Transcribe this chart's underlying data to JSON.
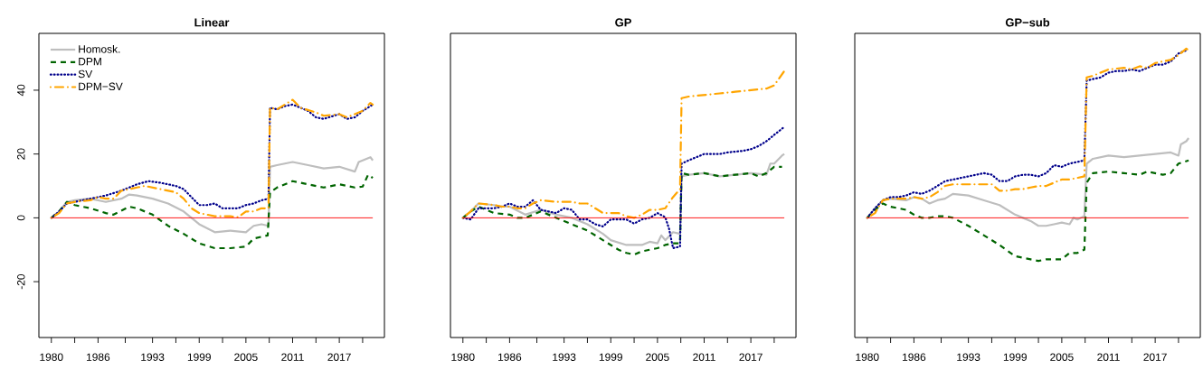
{
  "chart_data": [
    {
      "type": "line",
      "title": "Linear",
      "legend": "top left",
      "xlim": [
        1978.4,
        2022.8
      ],
      "ylim": [
        -37.5,
        57.8
      ],
      "yticks": [
        -20,
        0,
        20,
        40
      ],
      "xticks": [
        1980,
        {
          "value": 1983,
          "label": null
        },
        1986,
        {
          "value": 1989.5,
          "label": null
        },
        1993,
        {
          "value": 1996,
          "label": null
        },
        1999,
        {
          "value": 2002,
          "label": null
        },
        2005,
        {
          "value": 2008,
          "label": null
        },
        2011,
        {
          "value": 2014,
          "label": null
        },
        2017,
        {
          "value": 2020,
          "label": null
        }
      ],
      "ref_lines": [
        {
          "axis": "y",
          "value": 0,
          "color": "#ff0000"
        }
      ],
      "series": [
        {
          "name": "Homosk.",
          "color": "#bebebe",
          "line_style": "solid",
          "x": [
            1980,
            1981,
            1982,
            1983,
            1985,
            1987,
            1989,
            1990,
            1991,
            1993,
            1995,
            1997,
            1999,
            2001,
            2003,
            2005,
            2006,
            2007,
            2007.9,
            2008.1,
            2009,
            2011,
            2013,
            2015,
            2017,
            2019,
            2019.5,
            2020.5,
            2021,
            2021.3
          ],
          "values": [
            0,
            2,
            5,
            5.5,
            6,
            5,
            6,
            7.3,
            7,
            6,
            4.5,
            2,
            -2,
            -4.5,
            -4,
            -4.5,
            -2.5,
            -2,
            -2.5,
            16,
            16.5,
            17.5,
            16.5,
            15.5,
            16,
            14.5,
            17.5,
            18.5,
            19,
            18
          ]
        },
        {
          "name": "DPM",
          "color": "#006400",
          "line_style": "dashed",
          "x": [
            1980,
            1981,
            1982,
            1983,
            1985,
            1987,
            1988,
            1990,
            1991,
            1993,
            1995,
            1997,
            1999,
            2001,
            2003,
            2005,
            2006,
            2007.8,
            2008.1,
            2009,
            2011,
            2013,
            2015,
            2017,
            2019,
            2020,
            2020.7,
            2021.3
          ],
          "values": [
            0,
            2,
            5,
            4,
            3,
            1.5,
            1,
            3.5,
            3,
            1,
            -2.5,
            -5,
            -8,
            -9.5,
            -9.5,
            -9,
            -6.5,
            -5.5,
            8,
            9.5,
            11.5,
            10.5,
            9.5,
            10.5,
            9.5,
            9.8,
            13.5,
            12.5
          ]
        },
        {
          "name": "SV",
          "color": "#00008b",
          "line_style": "dotted",
          "x": [
            1980,
            1981,
            1982,
            1983,
            1985,
            1987,
            1989,
            1991,
            1992.5,
            1994,
            1996,
            1997,
            1998,
            1999,
            2000,
            2001,
            2002,
            2003,
            2004,
            2005,
            2006,
            2007,
            2007.9,
            2008.1,
            2009,
            2010,
            2011,
            2013,
            2014,
            2015,
            2017,
            2018,
            2019,
            2020,
            2021.3
          ],
          "values": [
            0,
            2,
            4.5,
            5,
            6,
            7,
            8.5,
            10.5,
            11.5,
            11,
            10,
            9,
            6.5,
            4,
            4,
            4.5,
            3,
            3,
            3,
            4,
            4.5,
            5.5,
            6,
            34.5,
            34,
            35,
            35.5,
            33.5,
            31.5,
            31,
            32.5,
            31,
            31.5,
            33.5,
            35.5
          ]
        },
        {
          "name": "DPM−SV",
          "color": "#ffa500",
          "line_style": "dashdot",
          "x": [
            1980,
            1981,
            1982,
            1983,
            1985,
            1986,
            1987,
            1988,
            1989,
            1991,
            1992,
            1994,
            1996,
            1997,
            1998,
            1999,
            2001,
            2002,
            2003,
            2004,
            2005,
            2006,
            2007,
            2007.9,
            2008.1,
            2009,
            2011,
            2012,
            2014,
            2015,
            2017,
            2018,
            2019,
            2020,
            2021,
            2021.3
          ],
          "values": [
            0,
            1.5,
            4.5,
            5,
            5.5,
            6.5,
            6,
            6,
            8.5,
            9.5,
            10,
            9,
            8,
            6,
            3,
            1.5,
            0.5,
            0.5,
            0.5,
            0.2,
            2,
            2,
            3,
            3,
            34.5,
            34,
            37,
            34.5,
            33,
            32,
            32.5,
            31.5,
            32.5,
            33.5,
            36,
            35.5
          ]
        }
      ]
    },
    {
      "type": "line",
      "title": "GP",
      "tick_labels": "x",
      "xlim": [
        1978.4,
        2022.8
      ],
      "ylim": [
        -37.5,
        57.8
      ],
      "xticks": [
        1980,
        {
          "value": 1983,
          "label": null
        },
        1986,
        {
          "value": 1989.5,
          "label": null
        },
        1993,
        {
          "value": 1996,
          "label": null
        },
        1999,
        {
          "value": 2002,
          "label": null
        },
        2005,
        {
          "value": 2008,
          "label": null
        },
        2011,
        {
          "value": 2014,
          "label": null
        },
        2017,
        {
          "value": 2020,
          "label": null
        }
      ],
      "ref_lines": [
        {
          "axis": "y",
          "value": 0,
          "color": "#ff0000"
        }
      ],
      "series": [
        {
          "color": "#bebebe",
          "line_style": "solid",
          "x": [
            1980,
            1981,
            1982,
            1984,
            1985,
            1986,
            1988,
            1990,
            1992,
            1994,
            1996,
            1998,
            1999,
            2001,
            2003,
            2004,
            2005,
            2005.5,
            2006,
            2007,
            2007.9,
            2008.1,
            2009,
            2011,
            2013,
            2015,
            2017,
            2019,
            2019.5,
            2020,
            2021,
            2021.3
          ],
          "values": [
            0,
            2,
            4.5,
            4,
            3.5,
            3.5,
            1,
            2.5,
            1,
            0,
            -2,
            -5,
            -7,
            -8.5,
            -8.5,
            -7.5,
            -8,
            -5.5,
            -7,
            -4.5,
            -5,
            13,
            13.5,
            14,
            13,
            13.5,
            14,
            13.5,
            17,
            17,
            19.5,
            20
          ]
        },
        {
          "color": "#006400",
          "line_style": "dashed",
          "x": [
            1980,
            1981,
            1982,
            1983,
            1984,
            1986,
            1987,
            1988,
            1989,
            1990,
            1992,
            1994,
            1996,
            1998,
            1999,
            2000,
            2001,
            2002,
            2003,
            2004,
            2005,
            2006,
            2007,
            2007.9,
            2008.1,
            2009,
            2011,
            2013,
            2015,
            2017,
            2018,
            2019,
            2020,
            2020.7,
            2021
          ],
          "values": [
            0,
            2,
            3.5,
            2.5,
            1.5,
            1,
            0,
            0,
            1,
            2,
            0,
            -2,
            -4,
            -7,
            -8.5,
            -10,
            -11,
            -11.5,
            -10.5,
            -10,
            -9.5,
            -8.5,
            -8,
            -8,
            14,
            13.5,
            14,
            13,
            13.5,
            14,
            13,
            14,
            16,
            16,
            16
          ]
        },
        {
          "color": "#00008b",
          "line_style": "dotted",
          "x": [
            1980,
            1981,
            1982,
            1983,
            1984,
            1985,
            1986,
            1987,
            1988,
            1989,
            1990,
            1991,
            1992,
            1993,
            1994,
            1995,
            1996,
            1997,
            1998,
            1999,
            2000,
            2001,
            2002,
            2003,
            2004,
            2005,
            2006,
            2006.5,
            2007,
            2007.9,
            2008.1,
            2009,
            2010,
            2011,
            2013,
            2014,
            2016,
            2017,
            2018,
            2019,
            2020,
            2021.3
          ],
          "values": [
            0,
            -0.5,
            3,
            3,
            3,
            3.5,
            4.5,
            3.5,
            3.5,
            5.5,
            2.5,
            2,
            1.5,
            3,
            2.5,
            -0.5,
            -0.5,
            -2,
            -2.7,
            -0.5,
            -0.5,
            -0.5,
            -1.8,
            -0.5,
            0,
            1.5,
            0.2,
            -3.5,
            -9.5,
            -9,
            17,
            18,
            19,
            20,
            20,
            20.5,
            21,
            21.5,
            22.5,
            24,
            26,
            28.5
          ]
        },
        {
          "color": "#ffa500",
          "line_style": "dashdot",
          "x": [
            1980,
            1981,
            1982,
            1984,
            1985,
            1986,
            1987,
            1988,
            1989,
            1990,
            1992,
            1993,
            1994,
            1995,
            1996,
            1997,
            1998,
            1999,
            2000,
            2001,
            2002,
            2003,
            2004,
            2005,
            2006,
            2007,
            2007.9,
            2008.1,
            2009,
            2011,
            2013,
            2015,
            2017,
            2019,
            2020,
            2021.3
          ],
          "values": [
            0,
            2,
            4.5,
            4,
            3.5,
            3.5,
            3,
            3,
            4.5,
            5.5,
            5,
            5,
            5,
            4.5,
            4.5,
            3,
            1.5,
            1.5,
            1.5,
            0.5,
            0,
            1,
            2.5,
            2.5,
            3,
            6.5,
            9,
            37.5,
            38,
            38.5,
            39,
            39.5,
            40,
            40.5,
            41.5,
            46
          ]
        }
      ]
    },
    {
      "type": "line",
      "title": "GP−sub",
      "tick_labels": "x",
      "xlim": [
        1978.4,
        2022.8
      ],
      "ylim": [
        -37.5,
        57.8
      ],
      "xticks": [
        1980,
        {
          "value": 1983,
          "label": null
        },
        1986,
        {
          "value": 1989.5,
          "label": null
        },
        1993,
        {
          "value": 1996,
          "label": null
        },
        1999,
        {
          "value": 2002,
          "label": null
        },
        2005,
        {
          "value": 2008,
          "label": null
        },
        2011,
        {
          "value": 2014,
          "label": null
        },
        2017,
        {
          "value": 2020,
          "label": null
        }
      ],
      "ref_lines": [
        {
          "axis": "y",
          "value": 0,
          "color": "#ff0000"
        }
      ],
      "series": [
        {
          "color": "#bebebe",
          "line_style": "solid",
          "x": [
            1980,
            1981,
            1982,
            1983,
            1985,
            1986,
            1987,
            1988,
            1989,
            1990,
            1991,
            1993,
            1995,
            1997,
            1999,
            2000,
            2001,
            2002,
            2003,
            2004,
            2005,
            2006,
            2006.5,
            2007,
            2007.9,
            2008.2,
            2009,
            2011,
            2013,
            2015,
            2017,
            2019,
            2020,
            2020.3,
            2021,
            2021.3
          ],
          "values": [
            0,
            3,
            5.5,
            6,
            5.5,
            6.5,
            6,
            4.5,
            5.5,
            6,
            7.5,
            7,
            5.5,
            4,
            1,
            0,
            -1,
            -2.5,
            -2.5,
            -2,
            -1.5,
            -2,
            0,
            -0.5,
            0.5,
            17,
            18.5,
            19.5,
            19,
            19.5,
            20,
            20.5,
            19.5,
            23,
            24,
            25
          ]
        },
        {
          "color": "#006400",
          "line_style": "dashed",
          "x": [
            1980,
            1981,
            1982,
            1983,
            1984,
            1985,
            1986,
            1987,
            1988,
            1989,
            1990,
            1991,
            1993,
            1995,
            1997,
            1999,
            2001,
            2002,
            2003,
            2005,
            2006,
            2007,
            2007.9,
            2008.2,
            2009,
            2011,
            2013,
            2015,
            2016,
            2018,
            2019,
            2020,
            2021.3
          ],
          "values": [
            0,
            2.5,
            4.5,
            3.5,
            3,
            2.5,
            1,
            0,
            0,
            0.5,
            0.5,
            0,
            -2.5,
            -5.5,
            -8.5,
            -12,
            -13,
            -13.5,
            -13,
            -13,
            -11,
            -11,
            -10,
            11,
            14,
            14.5,
            14,
            13.5,
            14.5,
            13.5,
            14,
            17,
            18
          ]
        },
        {
          "color": "#00008b",
          "line_style": "dotted",
          "x": [
            1980,
            1981,
            1982,
            1983,
            1984,
            1985,
            1986,
            1987,
            1988,
            1989,
            1990,
            1991,
            1993,
            1994,
            1995,
            1996,
            1997,
            1998,
            1999,
            2000,
            2001,
            2002,
            2003,
            2004,
            2005,
            2006,
            2007.9,
            2008.2,
            2009,
            2010,
            2011,
            2012,
            2013,
            2014,
            2015,
            2016,
            2017,
            2018,
            2019,
            2020,
            2021
          ],
          "values": [
            0,
            3,
            5.5,
            6.5,
            6.5,
            7,
            8,
            7.5,
            8.5,
            10,
            11.5,
            12,
            13,
            13.5,
            14,
            13.5,
            11.5,
            11.5,
            13,
            13.5,
            13.5,
            13,
            14,
            16.5,
            16,
            17,
            18,
            43,
            43.5,
            44,
            45.5,
            46,
            46,
            46.5,
            46,
            47,
            48,
            48,
            49,
            51.5,
            52.5
          ]
        },
        {
          "color": "#ffa500",
          "line_style": "dashdot",
          "x": [
            1980,
            1981,
            1982,
            1983,
            1985,
            1986,
            1987,
            1988,
            1989,
            1990,
            1991,
            1993,
            1995,
            1996,
            1997,
            1998,
            1999,
            2000,
            2001,
            2002,
            2003,
            2004,
            2005,
            2006,
            2007.9,
            2008.2,
            2009,
            2011,
            2013,
            2014,
            2015,
            2016,
            2017,
            2018,
            2019,
            2020,
            2021,
            2021.3
          ],
          "values": [
            0,
            1.5,
            5.5,
            6,
            6,
            6.5,
            6,
            6.5,
            8,
            10,
            10.5,
            10.5,
            10.5,
            10.5,
            8.5,
            8.5,
            9,
            9,
            9.5,
            10,
            10,
            11,
            12,
            12,
            13,
            44,
            44.5,
            46.5,
            47,
            46.5,
            47.5,
            47,
            48.5,
            49,
            49.5,
            51,
            53,
            52.5
          ]
        }
      ]
    }
  ]
}
